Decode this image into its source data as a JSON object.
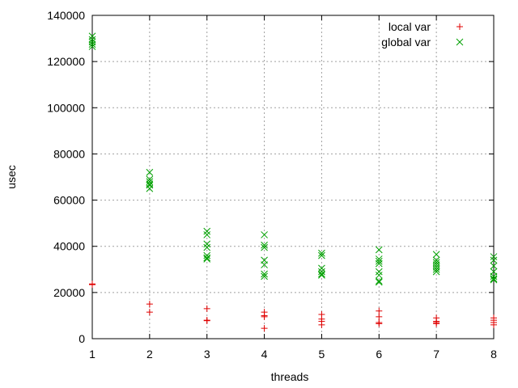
{
  "chart_data": {
    "type": "scatter",
    "xlabel": "threads",
    "ylabel": "usec",
    "xlim": [
      1,
      8
    ],
    "ylim": [
      0,
      140000
    ],
    "x_ticks": [
      1,
      2,
      3,
      4,
      5,
      6,
      7,
      8
    ],
    "y_ticks": [
      0,
      20000,
      40000,
      60000,
      80000,
      100000,
      120000,
      140000
    ],
    "grid": true,
    "legend_position": "top-right",
    "series": [
      {
        "name": "local var",
        "marker": "plus",
        "color": "#e00000",
        "points": [
          [
            1,
            23500
          ],
          [
            1,
            23600
          ],
          [
            1,
            23400
          ],
          [
            1,
            23700
          ],
          [
            1,
            23500
          ],
          [
            2,
            15000
          ],
          [
            2,
            11500
          ],
          [
            3,
            13000
          ],
          [
            3,
            8000
          ],
          [
            3,
            7800
          ],
          [
            4,
            11500
          ],
          [
            4,
            10000
          ],
          [
            4,
            9500
          ],
          [
            4,
            4500
          ],
          [
            5,
            10500
          ],
          [
            5,
            8500
          ],
          [
            5,
            7500
          ],
          [
            5,
            6000
          ],
          [
            6,
            12000
          ],
          [
            6,
            9500
          ],
          [
            6,
            7000
          ],
          [
            6,
            6500
          ],
          [
            7,
            9000
          ],
          [
            7,
            7500
          ],
          [
            7,
            7000
          ],
          [
            7,
            6500
          ],
          [
            8,
            9000
          ],
          [
            8,
            8000
          ],
          [
            8,
            7000
          ],
          [
            8,
            6000
          ]
        ]
      },
      {
        "name": "global var",
        "marker": "cross",
        "color": "#00a000",
        "points": [
          [
            1,
            131000
          ],
          [
            1,
            129500
          ],
          [
            1,
            128500
          ],
          [
            1,
            127500
          ],
          [
            1,
            126500
          ],
          [
            2,
            72000
          ],
          [
            2,
            69000
          ],
          [
            2,
            68000
          ],
          [
            2,
            67000
          ],
          [
            2,
            66500
          ],
          [
            2,
            65000
          ],
          [
            3,
            46500
          ],
          [
            3,
            45000
          ],
          [
            3,
            41000
          ],
          [
            3,
            39500
          ],
          [
            3,
            36000
          ],
          [
            3,
            35000
          ],
          [
            3,
            34500
          ],
          [
            4,
            45000
          ],
          [
            4,
            40500
          ],
          [
            4,
            39500
          ],
          [
            4,
            34000
          ],
          [
            4,
            32000
          ],
          [
            4,
            28000
          ],
          [
            4,
            27000
          ],
          [
            5,
            37000
          ],
          [
            5,
            36000
          ],
          [
            5,
            30500
          ],
          [
            5,
            29000
          ],
          [
            5,
            28000
          ],
          [
            5,
            27500
          ],
          [
            6,
            38500
          ],
          [
            6,
            34500
          ],
          [
            6,
            33500
          ],
          [
            6,
            32500
          ],
          [
            6,
            29000
          ],
          [
            6,
            27500
          ],
          [
            6,
            25000
          ],
          [
            6,
            24500
          ],
          [
            7,
            36500
          ],
          [
            7,
            34000
          ],
          [
            7,
            33000
          ],
          [
            7,
            32000
          ],
          [
            7,
            31000
          ],
          [
            7,
            30000
          ],
          [
            7,
            29000
          ],
          [
            8,
            35500
          ],
          [
            8,
            34000
          ],
          [
            8,
            31500
          ],
          [
            8,
            29000
          ],
          [
            8,
            27000
          ],
          [
            8,
            26000
          ],
          [
            8,
            25500
          ]
        ]
      }
    ]
  }
}
